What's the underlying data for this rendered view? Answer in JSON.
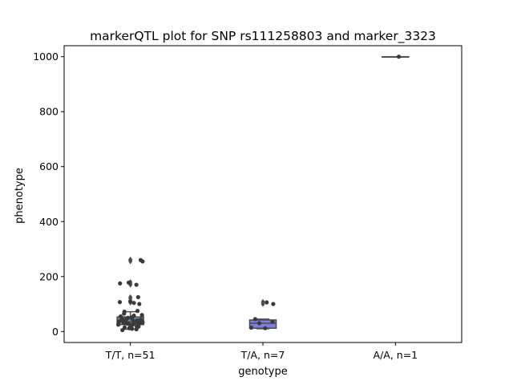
{
  "chart_data": {
    "type": "boxplot with strip points",
    "title": "markerQTL plot for SNP rs111258803 and marker_3323",
    "xlabel": "genotype",
    "ylabel": "phenotype",
    "ylim": [
      -40,
      1040
    ],
    "yticks": [
      0,
      200,
      400,
      600,
      800,
      1000
    ],
    "grid": false,
    "colors": {
      "box_fill_1": "#5b8fb3",
      "box_fill_2": "#7f7fe3",
      "box_edge": "#4c4c4c",
      "points": "#3a3a3a"
    },
    "categories": [
      {
        "label": "T/T, n=51",
        "box": {
          "q1": 25,
          "median": 35,
          "q3": 53,
          "whisker_low": 8,
          "whisker_high": 72
        },
        "outliers": [
          105,
          110,
          120,
          125,
          170,
          175,
          180,
          255,
          260,
          262
        ],
        "points": [
          5,
          8,
          10,
          12,
          15,
          18,
          18,
          20,
          22,
          22,
          25,
          25,
          27,
          28,
          28,
          30,
          30,
          32,
          33,
          34,
          35,
          35,
          36,
          37,
          38,
          40,
          40,
          42,
          43,
          45,
          45,
          47,
          48,
          50,
          52,
          55,
          58,
          60,
          65,
          72,
          75,
          100,
          104,
          107,
          110,
          125,
          170,
          175,
          178,
          255,
          260
        ]
      },
      {
        "label": "T/A, n=7",
        "box": {
          "q1": 12,
          "median": 30,
          "q3": 42,
          "whisker_low": 10,
          "whisker_high": 45
        },
        "outliers": [
          100,
          108
        ],
        "points": [
          12,
          14,
          30,
          35,
          45,
          100,
          106
        ]
      },
      {
        "label": "A/A, n=1",
        "box": {
          "q1": 1000,
          "median": 1000,
          "q3": 1000,
          "whisker_low": 1000,
          "whisker_high": 1000
        },
        "outliers": [],
        "points": [
          1000
        ]
      }
    ]
  }
}
